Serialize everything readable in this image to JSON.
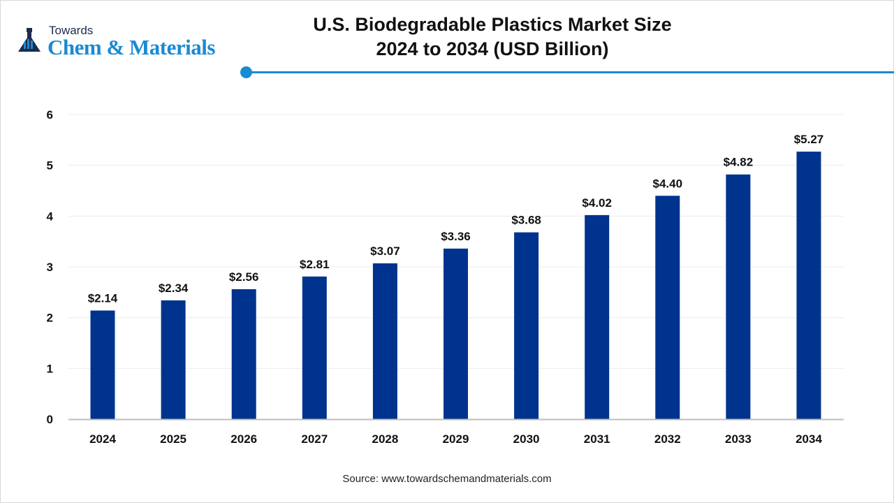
{
  "logo": {
    "line1": "Towards",
    "line2": "Chem & Materials"
  },
  "title": {
    "line1": "U.S. Biodegradable Plastics Market Size",
    "line2": "2024 to 2034 (USD Billion)"
  },
  "source": "Source: www.towardschemandmaterials.com",
  "colors": {
    "bar": "#00338d",
    "accent": "#1a8ad4"
  },
  "chart_data": {
    "type": "bar",
    "title": "U.S. Biodegradable Plastics Market Size 2024 to 2034 (USD Billion)",
    "categories": [
      "2024",
      "2025",
      "2026",
      "2027",
      "2028",
      "2029",
      "2030",
      "2031",
      "2032",
      "2033",
      "2034"
    ],
    "values": [
      2.14,
      2.34,
      2.56,
      2.81,
      3.07,
      3.36,
      3.68,
      4.02,
      4.4,
      4.82,
      5.27
    ],
    "data_labels": [
      "$2.14",
      "$2.34",
      "$2.56",
      "$2.81",
      "$3.07",
      "$3.36",
      "$3.68",
      "$4.02",
      "$4.40",
      "$4.82",
      "$5.27"
    ],
    "yticks": [
      0,
      1,
      2,
      3,
      4,
      5,
      6
    ],
    "ylim": [
      0,
      6
    ],
    "xlabel": "",
    "ylabel": "",
    "grid": true,
    "legend": "none"
  }
}
